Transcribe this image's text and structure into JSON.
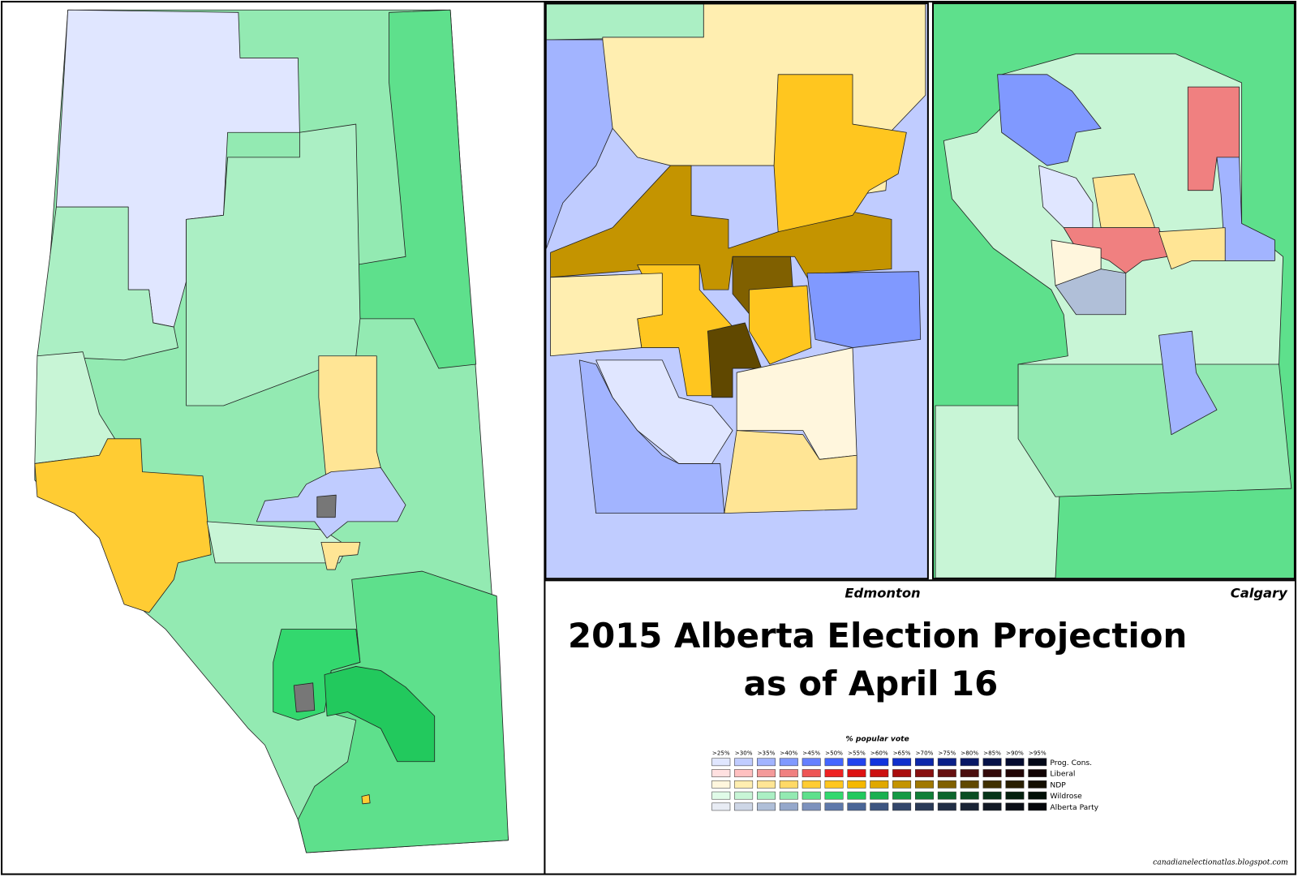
{
  "title_lines": [
    "2015 Alberta Election Projection",
    "as of April 16"
  ],
  "map_labels": [
    "Edmonton",
    "Calgary"
  ],
  "legend": {
    "title": "% popular vote",
    "thresholds": [
      ">25%",
      ">30%",
      ">35%",
      ">40%",
      ">45%",
      ">50%",
      ">55%",
      ">60%",
      ">65%",
      ">70%",
      ">75%",
      ">80%",
      ">85%",
      ">90%",
      ">95%"
    ],
    "rows": [
      {
        "name": "Prog. Cons.",
        "colors": [
          "#e0e6ff",
          "#c0ccff",
          "#a2b4ff",
          "#8099ff",
          "#6680ff",
          "#4466ff",
          "#2244ee",
          "#1133dd",
          "#1030cc",
          "#0d28aa",
          "#0a2088",
          "#081866",
          "#061248",
          "#040c30",
          "#020818"
        ]
      },
      {
        "name": "Liberal",
        "colors": [
          "#ffe0e0",
          "#ffc0c0",
          "#f49a9a",
          "#f08080",
          "#ee5555",
          "#ee2222",
          "#dd1111",
          "#cc1010",
          "#aa0d0d",
          "#881010",
          "#661010",
          "#4a0d0d",
          "#330a0a",
          "#220606",
          "#110303"
        ]
      },
      {
        "name": "NDP",
        "colors": [
          "#fff6dd",
          "#ffeeb0",
          "#ffe595",
          "#ffd966",
          "#ffcc33",
          "#ffc61f",
          "#f5b800",
          "#e0a800",
          "#c49400",
          "#a07800",
          "#806000",
          "#604800",
          "#403000",
          "#281e00",
          "#140f00"
        ]
      },
      {
        "name": "Wildrose",
        "colors": [
          "#e0fbe8",
          "#c8f5d6",
          "#abefc4",
          "#93eab2",
          "#5ee08c",
          "#33d86e",
          "#22c95d",
          "#1ab050",
          "#149a44",
          "#117f38",
          "#0d662d",
          "#0a4d22",
          "#063418",
          "#04200e",
          "#021007"
        ]
      },
      {
        "name": "Alberta Party",
        "colors": [
          "#e8ecf4",
          "#cdd6e6",
          "#b0bfd8",
          "#95a8cb",
          "#7d92bd",
          "#5f79aa",
          "#4a6596",
          "#3d5580",
          "#33476b",
          "#2a3a57",
          "#212e45",
          "#192334",
          "#121925",
          "#0b0f17",
          "#05070b"
        ]
      }
    ]
  },
  "source": "canadianelectionatlas.blogspot.com"
}
